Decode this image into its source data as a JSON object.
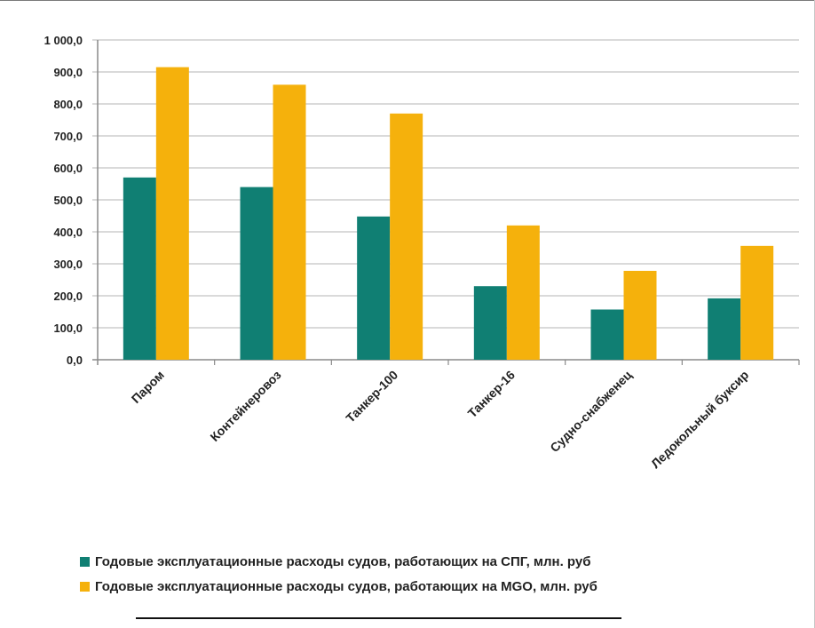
{
  "chart_data": {
    "type": "bar",
    "title": "",
    "xlabel": "",
    "ylabel": "",
    "categories": [
      "Паром",
      "Контейнеровоз",
      "Танкер-100",
      "Танкер-16",
      "Судно-снабженец",
      "Ледокольный буксир"
    ],
    "series": [
      {
        "name": "Годовые эксплуатационные расходы судов, работающих на СПГ, млн. руб",
        "color": "#107f73",
        "values": [
          570,
          540,
          448,
          230,
          157,
          192
        ]
      },
      {
        "name": "Годовые эксплуатационные расходы судов, работающих на MGO, млн. руб",
        "color": "#f5b10c",
        "values": [
          915,
          860,
          770,
          420,
          278,
          356
        ]
      }
    ],
    "ylim": [
      0,
      1000
    ],
    "yticks": [
      0,
      100,
      200,
      300,
      400,
      500,
      600,
      700,
      800,
      900,
      1000
    ],
    "ytick_labels": [
      "0,0",
      "100,0",
      "200,0",
      "300,0",
      "400,0",
      "500,0",
      "600,0",
      "700,0",
      "800,0",
      "900,0",
      "1 000,0"
    ],
    "grid": true,
    "legend_position": "bottom"
  }
}
